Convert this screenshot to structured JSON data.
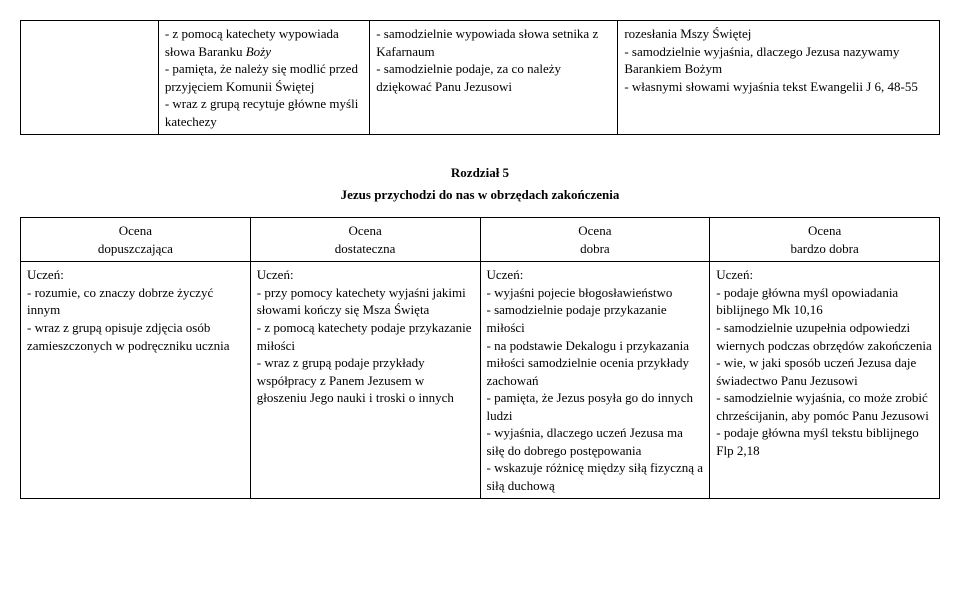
{
  "topTable": {
    "row": {
      "col1": "",
      "col2": "- z pomocą katechety wypowiada słowa Baranku Boży\n- pamięta, że należy się modlić przed przyjęciem Komunii Świętej\n- wraz z grupą recytuje główne myśli katechezy",
      "col2_italicWord": "Boży",
      "col3": "- samodzielnie wypowiada słowa setnika z Kafarnaum\n- samodzielnie podaje, za co należy dziękować Panu Jezusowi",
      "col4": "rozesłania Mszy Świętej\n- samodzielnie wyjaśnia, dlaczego Jezusa nazywamy Barankiem Bożym\n- własnymi słowami wyjaśnia tekst Ewangelii J 6, 48-55"
    }
  },
  "section": {
    "chapter": "Rozdział 5",
    "subtitle": "Jezus przychodzi do nas w obrzędach zakończenia"
  },
  "bottomTable": {
    "headers": {
      "h1a": "Ocena",
      "h1b": "dopuszczająca",
      "h2a": "Ocena",
      "h2b": "dostateczna",
      "h3a": "Ocena",
      "h3b": "dobra",
      "h4a": "Ocena",
      "h4b": "bardzo dobra"
    },
    "row": {
      "c1_label": "Uczeń:",
      "c1": "- rozumie, co znaczy dobrze życzyć innym\n- wraz z grupą opisuje zdjęcia osób zamieszczonych w podręczniku ucznia",
      "c2_label": "Uczeń:",
      "c2": "- przy pomocy katechety wyjaśni jakimi słowami kończy się Msza Święta\n- z pomocą katechety podaje przykazanie miłości\n- wraz z grupą podaje przykłady współpracy z Panem Jezusem w głoszeniu Jego nauki i troski o innych",
      "c3_label": "Uczeń:",
      "c3": "- wyjaśni pojecie błogosławieństwo\n- samodzielnie podaje przykazanie miłości\n- na podstawie Dekalogu i przykazania miłości samodzielnie ocenia przykłady zachowań\n- pamięta, że Jezus posyła go do innych ludzi\n- wyjaśnia, dlaczego uczeń Jezusa ma siłę do dobrego postępowania\n- wskazuje różnicę między siłą fizyczną a siłą duchową",
      "c4_label": "Uczeń:",
      "c4": "- podaje główna myśl opowiadania biblijnego Mk 10,16\n- samodzielnie uzupełnia odpowiedzi wiernych podczas obrzędów zakończenia\n- wie, w jaki sposób uczeń Jezusa daje świadectwo Panu Jezusowi\n- samodzielnie wyjaśnia, co może zrobić chrześcijanin, aby pomóc Panu Jezusowi\n- podaje główna myśl tekstu biblijnego Flp 2,18"
    }
  }
}
